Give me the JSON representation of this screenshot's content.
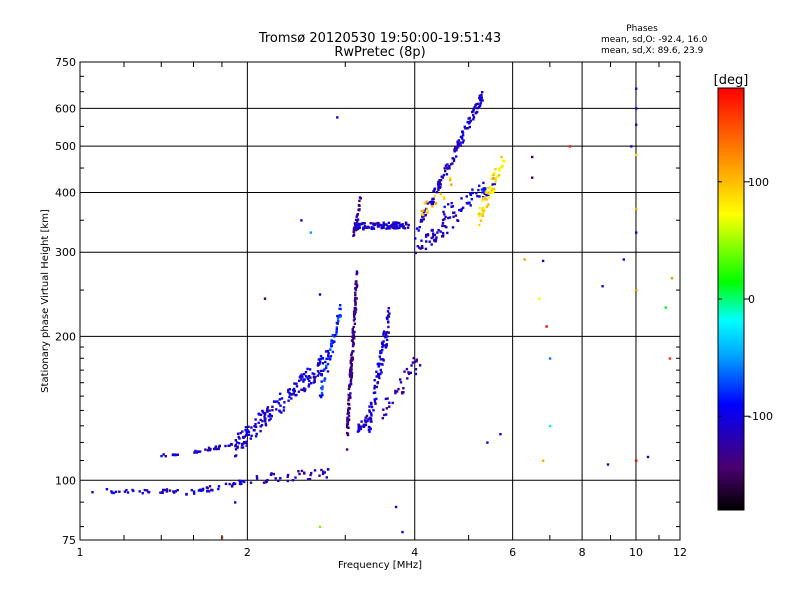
{
  "chart_data": {
    "type": "scatter",
    "title": "Tromsø 20120530 19:50:00-19:51:43",
    "subtitle": "RwPretec (8p)",
    "xlabel": "Frequency [MHz]",
    "ylabel": "Stationary phase Virtual Height [km]",
    "xscale": "log",
    "yscale": "log",
    "xlim": [
      1,
      12
    ],
    "ylim": [
      75,
      750
    ],
    "x_ticks": [
      1,
      2,
      4,
      6,
      8,
      10,
      12
    ],
    "x_tick_labels": [
      "1",
      "2",
      "4",
      "6",
      "8",
      "10",
      "12"
    ],
    "y_ticks": [
      75,
      100,
      200,
      300,
      400,
      500,
      600,
      750
    ],
    "y_tick_labels": [
      "75",
      "100",
      "200",
      "300",
      "400",
      "500",
      "600",
      "750"
    ],
    "grid": true,
    "legend": {
      "heading": "Phases",
      "lines": [
        "mean, sd,O: -92.4, 16.0",
        "mean, sd,X:  89.6, 23.9"
      ],
      "placement": "top-right"
    },
    "colorbar": {
      "label": "[deg]",
      "range": [
        -180,
        180
      ],
      "ticks": [
        100,
        0,
        -100
      ],
      "tick_labels": [
        "100",
        "0",
        "-100"
      ],
      "placement": "right"
    },
    "segments": [
      {
        "f0": 1.05,
        "f1": 1.5,
        "h0": 95,
        "h1": 95,
        "n": 30,
        "spread": 0.012,
        "phase": -108
      },
      {
        "f0": 1.55,
        "f1": 2.05,
        "h0": 94,
        "h1": 100,
        "n": 34,
        "spread": 0.012,
        "phase": -110
      },
      {
        "f0": 2.0,
        "f1": 2.8,
        "h0": 100,
        "h1": 104,
        "n": 36,
        "spread": 0.025,
        "phase": -118
      },
      {
        "f0": 1.4,
        "f1": 1.5,
        "h0": 113,
        "h1": 113,
        "n": 10,
        "spread": 0.006,
        "phase": -105
      },
      {
        "f0": 1.6,
        "f1": 2.0,
        "h0": 115,
        "h1": 120,
        "n": 30,
        "spread": 0.008,
        "phase": -110
      },
      {
        "f0": 1.9,
        "f1": 2.8,
        "h0": 118,
        "h1": 180,
        "n": 170,
        "spread": 0.05,
        "phase": -105
      },
      {
        "f0": 2.7,
        "f1": 2.95,
        "h0": 150,
        "h1": 230,
        "n": 55,
        "spread": 0.045,
        "phase": -80
      },
      {
        "f0": 3.02,
        "f1": 3.15,
        "h0": 125,
        "h1": 270,
        "n": 140,
        "spread": 0.08,
        "phase": -135
      },
      {
        "f0": 3.15,
        "f1": 3.3,
        "h0": 128,
        "h1": 135,
        "n": 25,
        "spread": 0.02,
        "phase": -110
      },
      {
        "f0": 3.3,
        "f1": 3.6,
        "h0": 130,
        "h1": 220,
        "n": 90,
        "spread": 0.07,
        "phase": -105
      },
      {
        "f0": 3.5,
        "f1": 4.1,
        "h0": 140,
        "h1": 180,
        "n": 35,
        "spread": 0.05,
        "phase": -120
      },
      {
        "f0": 3.1,
        "f1": 3.9,
        "h0": 340,
        "h1": 342,
        "n": 110,
        "spread": 0.015,
        "phase": -110
      },
      {
        "f0": 3.1,
        "f1": 3.2,
        "h0": 320,
        "h1": 390,
        "n": 25,
        "spread": 0.03,
        "phase": -125
      },
      {
        "f0": 4.0,
        "f1": 5.3,
        "h0": 325,
        "h1": 640,
        "n": 130,
        "spread": 0.03,
        "phase": -108
      },
      {
        "f0": 4.0,
        "f1": 4.8,
        "h0": 300,
        "h1": 360,
        "n": 50,
        "spread": 0.04,
        "phase": -115
      },
      {
        "f0": 4.5,
        "f1": 5.6,
        "h0": 360,
        "h1": 420,
        "n": 50,
        "spread": 0.04,
        "phase": -100
      },
      {
        "f0": 5.2,
        "f1": 5.8,
        "h0": 350,
        "h1": 480,
        "n": 60,
        "spread": 0.05,
        "phase": 85
      },
      {
        "f0": 4.1,
        "f1": 4.7,
        "h0": 360,
        "h1": 420,
        "n": 18,
        "spread": 0.04,
        "phase": 95
      }
    ],
    "scatter_points": [
      {
        "x": 2.9,
        "y": 575,
        "phase": -110
      },
      {
        "x": 2.5,
        "y": 350,
        "phase": -110
      },
      {
        "x": 2.6,
        "y": 330,
        "phase": -50
      },
      {
        "x": 2.15,
        "y": 240,
        "phase": -150
      },
      {
        "x": 2.7,
        "y": 245,
        "phase": -90
      },
      {
        "x": 2.7,
        "y": 80,
        "phase": 40
      },
      {
        "x": 3.7,
        "y": 88,
        "phase": -110
      },
      {
        "x": 3.8,
        "y": 78,
        "phase": -110
      },
      {
        "x": 1.8,
        "y": 76,
        "phase": 140
      },
      {
        "x": 1.9,
        "y": 90,
        "phase": -110
      },
      {
        "x": 6.5,
        "y": 475,
        "phase": -130
      },
      {
        "x": 6.5,
        "y": 430,
        "phase": -150
      },
      {
        "x": 6.3,
        "y": 290,
        "phase": 115
      },
      {
        "x": 6.8,
        "y": 288,
        "phase": -110
      },
      {
        "x": 6.7,
        "y": 240,
        "phase": 75
      },
      {
        "x": 6.9,
        "y": 210,
        "phase": 180
      },
      {
        "x": 7.0,
        "y": 180,
        "phase": -60
      },
      {
        "x": 7.0,
        "y": 130,
        "phase": -20
      },
      {
        "x": 6.8,
        "y": 110,
        "phase": 110
      },
      {
        "x": 5.4,
        "y": 120,
        "phase": -110
      },
      {
        "x": 5.7,
        "y": 125,
        "phase": -100
      },
      {
        "x": 7.6,
        "y": 500,
        "phase": 170
      },
      {
        "x": 8.7,
        "y": 255,
        "phase": -110
      },
      {
        "x": 8.9,
        "y": 108,
        "phase": -120
      },
      {
        "x": 9.5,
        "y": 290,
        "phase": -100
      },
      {
        "x": 9.8,
        "y": 500,
        "phase": -110
      },
      {
        "x": 10.0,
        "y": 660,
        "phase": -110
      },
      {
        "x": 10.0,
        "y": 600,
        "phase": -100
      },
      {
        "x": 10.0,
        "y": 555,
        "phase": -115
      },
      {
        "x": 10.0,
        "y": 480,
        "phase": 90
      },
      {
        "x": 10.0,
        "y": 370,
        "phase": 110
      },
      {
        "x": 10.0,
        "y": 330,
        "phase": -110
      },
      {
        "x": 10.0,
        "y": 250,
        "phase": 120
      },
      {
        "x": 10.0,
        "y": 110,
        "phase": 180
      },
      {
        "x": 10.5,
        "y": 112,
        "phase": -120
      },
      {
        "x": 11.5,
        "y": 180,
        "phase": 160
      },
      {
        "x": 11.6,
        "y": 265,
        "phase": 120
      },
      {
        "x": 11.3,
        "y": 230,
        "phase": 10
      }
    ]
  }
}
